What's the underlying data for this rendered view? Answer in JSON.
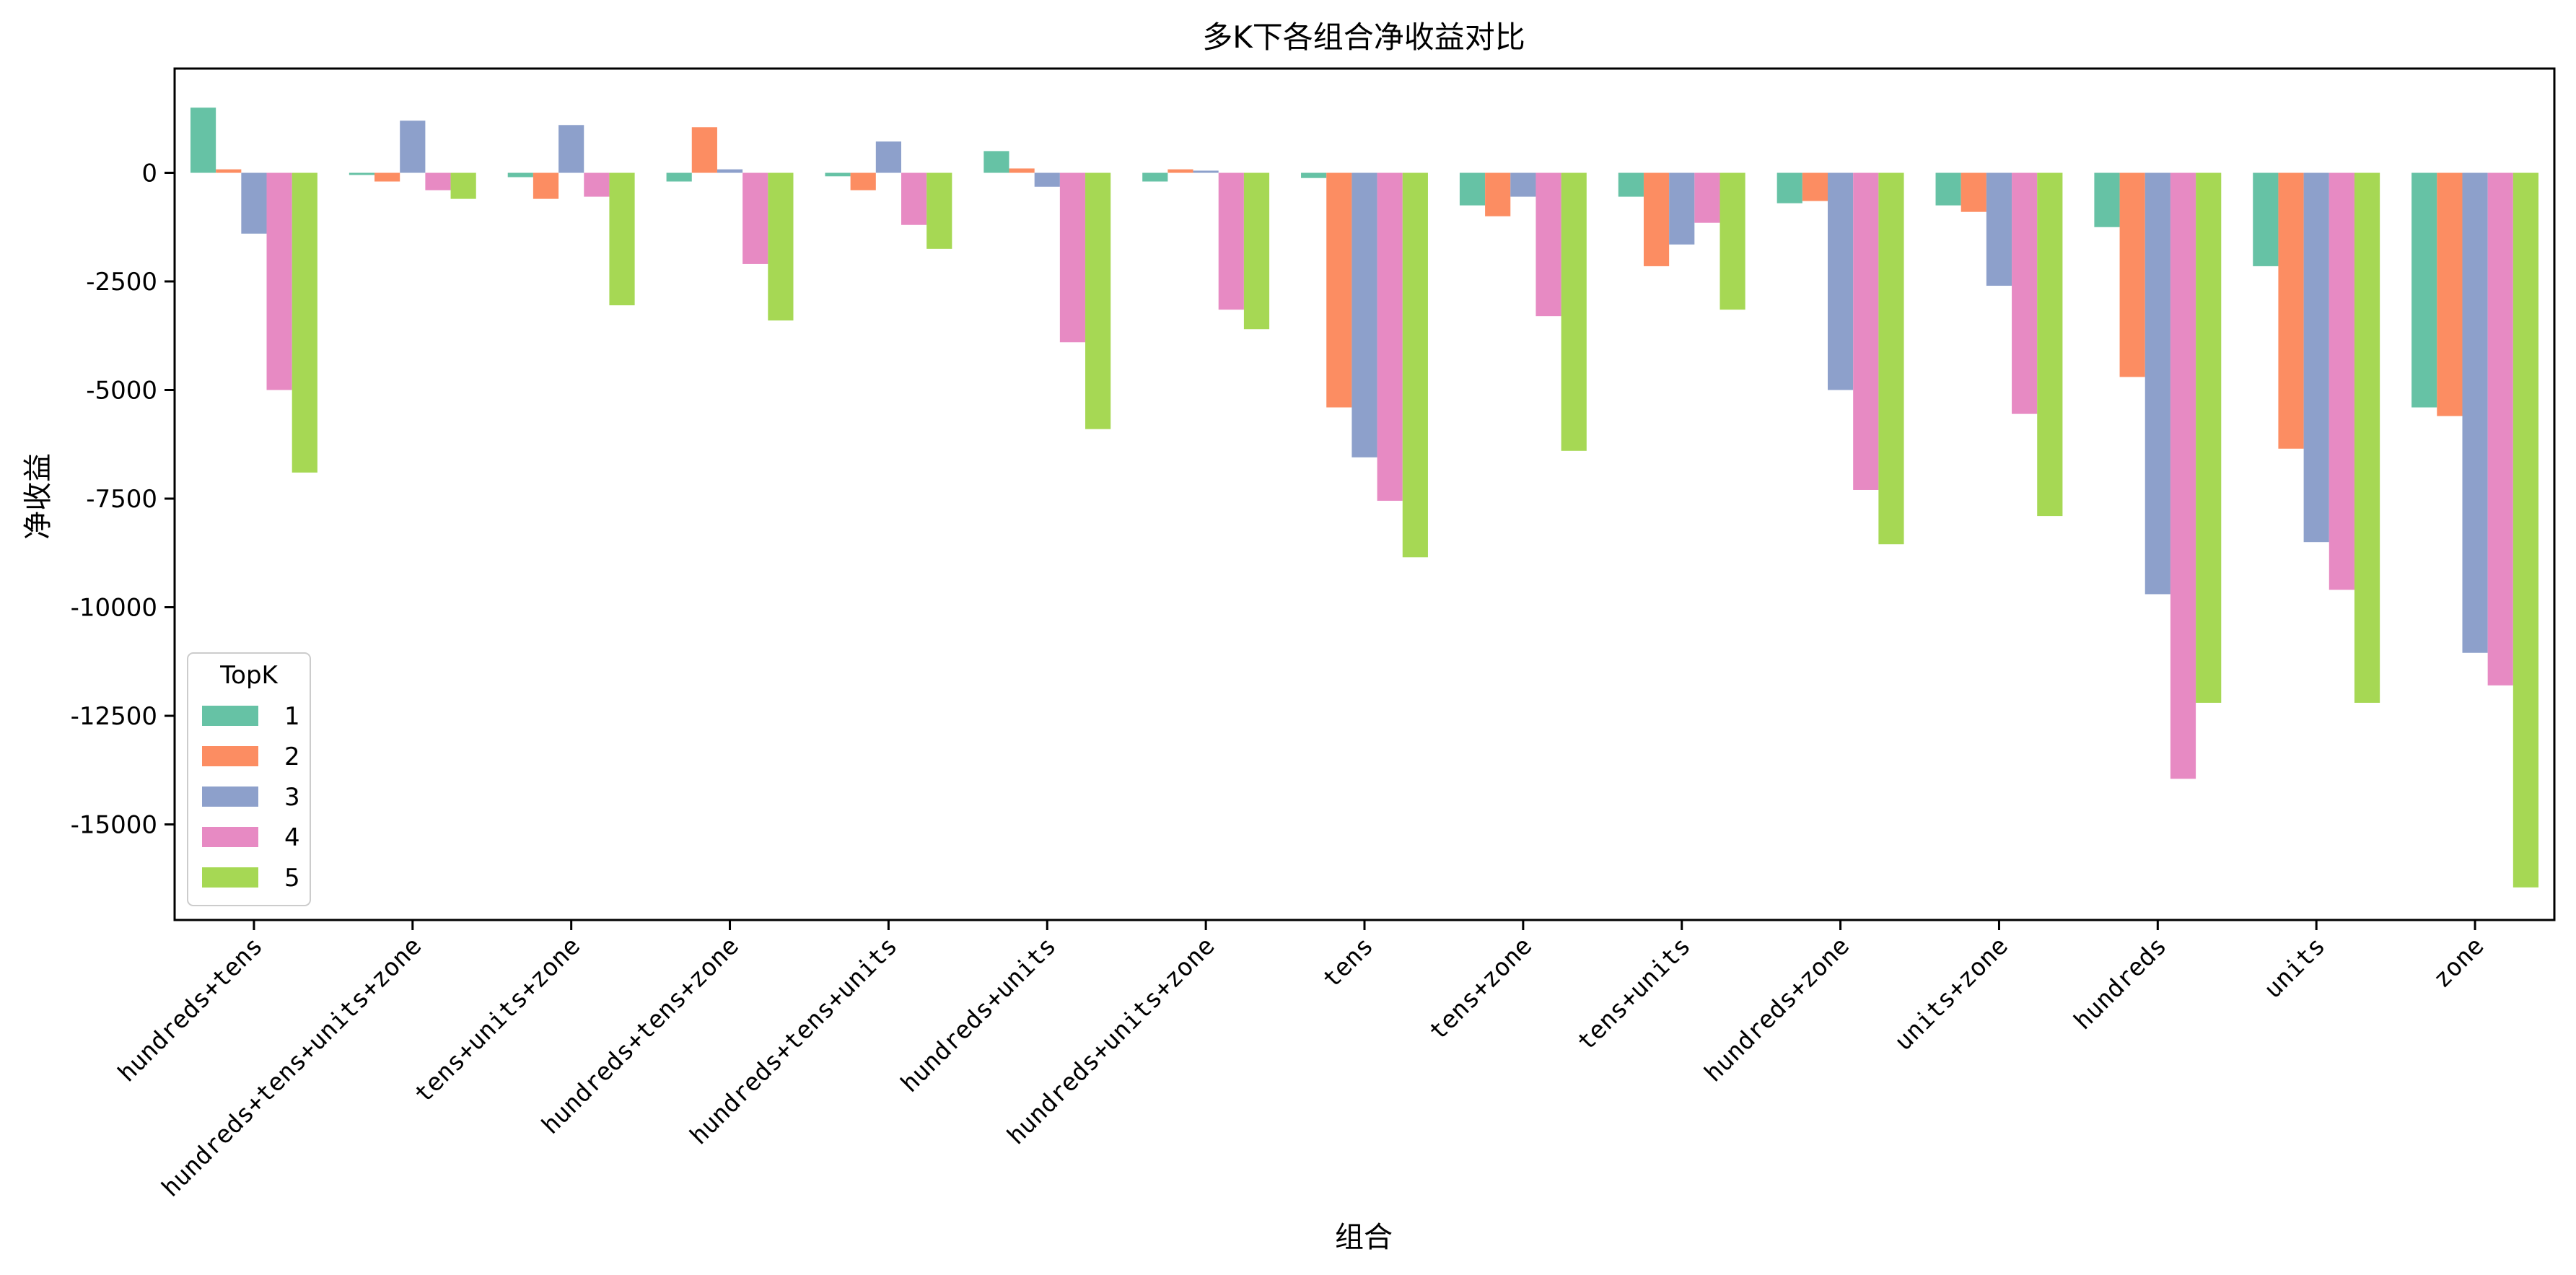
{
  "chart_data": {
    "type": "bar",
    "title": "多K下各组合净收益对比",
    "xlabel": "组合",
    "ylabel": "净收益",
    "ylim": [
      -17200,
      2400
    ],
    "yticks": [
      0,
      -2500,
      -5000,
      -7500,
      -10000,
      -12500,
      -15000
    ],
    "ytick_labels": [
      "0",
      "-2500",
      "-5000",
      "-7500",
      "-10000",
      "-12500",
      "-15000"
    ],
    "grid": false,
    "legend": {
      "title": "TopK",
      "position": "lower-left"
    },
    "categories": [
      "hundreds+tens",
      "hundreds+tens+units+zone",
      "tens+units+zone",
      "hundreds+tens+zone",
      "hundreds+tens+units",
      "hundreds+units",
      "hundreds+units+zone",
      "tens",
      "tens+zone",
      "tens+units",
      "hundreds+zone",
      "units+zone",
      "hundreds",
      "units",
      "zone"
    ],
    "series": [
      {
        "name": "1",
        "color": "#66c2a5",
        "values": [
          1500,
          -50,
          -100,
          -200,
          -80,
          500,
          -200,
          -120,
          -750,
          -550,
          -700,
          -750,
          -1250,
          -2150,
          -5400
        ]
      },
      {
        "name": "2",
        "color": "#fc8d62",
        "values": [
          80,
          -200,
          -600,
          1050,
          -400,
          100,
          80,
          -5400,
          -1000,
          -2150,
          -650,
          -900,
          -4700,
          -6350,
          -5600
        ]
      },
      {
        "name": "3",
        "color": "#8da0cb",
        "values": [
          -1400,
          1200,
          1100,
          80,
          720,
          -320,
          50,
          -6550,
          -550,
          -1650,
          -5000,
          -2600,
          -9700,
          -8500,
          -11050
        ]
      },
      {
        "name": "4",
        "color": "#e78ac3",
        "values": [
          -5000,
          -400,
          -550,
          -2100,
          -1200,
          -3900,
          -3150,
          -7550,
          -3300,
          -1150,
          -7300,
          -5550,
          -13950,
          -9600,
          -11800
        ]
      },
      {
        "name": "5",
        "color": "#a6d854",
        "values": [
          -6900,
          -600,
          -3050,
          -3400,
          -1750,
          -5900,
          -3600,
          -8850,
          -6400,
          -3150,
          -8550,
          -7900,
          -12200,
          -12200,
          -16450
        ]
      }
    ]
  }
}
